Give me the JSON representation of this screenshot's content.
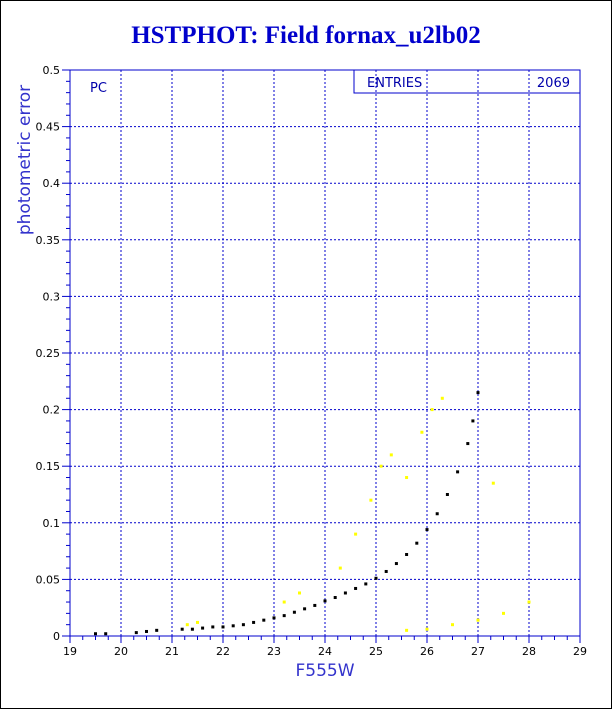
{
  "chart_data": {
    "type": "scatter",
    "title": "HSTPHOT: Field fornax_u2lb02",
    "xlabel": "F555W",
    "ylabel": "photometric error",
    "xlim": [
      19,
      29
    ],
    "ylim": [
      0,
      0.5
    ],
    "xticks": [
      "19",
      "20",
      "21",
      "22",
      "23",
      "24",
      "25",
      "26",
      "27",
      "28",
      "29"
    ],
    "yticks": [
      "0",
      "0.05",
      "0.1",
      "0.15",
      "0.2",
      "0.25",
      "0.3",
      "0.35",
      "0.4",
      "0.45",
      "0.5"
    ],
    "grid": true,
    "annotation": "PC",
    "stats_box": {
      "label": "ENTRIES",
      "value": "2069"
    },
    "series_colors": {
      "main": "#000000",
      "secondary": "#ffff00"
    },
    "series": [
      {
        "points": [
          [
            19.5,
            0.002
          ],
          [
            19.7,
            0.002
          ],
          [
            20.3,
            0.003
          ],
          [
            20.5,
            0.004
          ],
          [
            20.7,
            0.005
          ],
          [
            21.2,
            0.006
          ],
          [
            21.4,
            0.006
          ],
          [
            21.6,
            0.007
          ],
          [
            21.8,
            0.008
          ],
          [
            22.0,
            0.008
          ],
          [
            22.2,
            0.009
          ],
          [
            22.4,
            0.01
          ],
          [
            22.6,
            0.012
          ],
          [
            22.8,
            0.014
          ],
          [
            23.0,
            0.016
          ],
          [
            23.2,
            0.018
          ],
          [
            23.4,
            0.021
          ],
          [
            23.6,
            0.024
          ],
          [
            23.8,
            0.027
          ],
          [
            24.0,
            0.031
          ],
          [
            24.2,
            0.034
          ],
          [
            24.4,
            0.038
          ],
          [
            24.6,
            0.042
          ],
          [
            24.8,
            0.046
          ],
          [
            25.0,
            0.051
          ],
          [
            25.2,
            0.057
          ],
          [
            25.4,
            0.064
          ],
          [
            25.6,
            0.072
          ],
          [
            25.8,
            0.082
          ],
          [
            26.0,
            0.094
          ],
          [
            26.2,
            0.108
          ],
          [
            26.4,
            0.125
          ],
          [
            26.6,
            0.145
          ],
          [
            26.8,
            0.17
          ],
          [
            26.9,
            0.19
          ],
          [
            27.0,
            0.215
          ]
        ]
      },
      {
        "points": [
          [
            21.3,
            0.01
          ],
          [
            21.5,
            0.012
          ],
          [
            23.2,
            0.03
          ],
          [
            23.5,
            0.038
          ],
          [
            24.3,
            0.06
          ],
          [
            24.6,
            0.09
          ],
          [
            24.9,
            0.12
          ],
          [
            25.1,
            0.15
          ],
          [
            25.3,
            0.16
          ],
          [
            25.6,
            0.14
          ],
          [
            25.9,
            0.18
          ],
          [
            26.1,
            0.2
          ],
          [
            26.3,
            0.21
          ],
          [
            27.3,
            0.135
          ],
          [
            25.6,
            0.005
          ],
          [
            26.0,
            0.006
          ],
          [
            26.5,
            0.01
          ],
          [
            27.0,
            0.014
          ],
          [
            27.5,
            0.02
          ],
          [
            28.0,
            0.03
          ]
        ]
      }
    ]
  }
}
